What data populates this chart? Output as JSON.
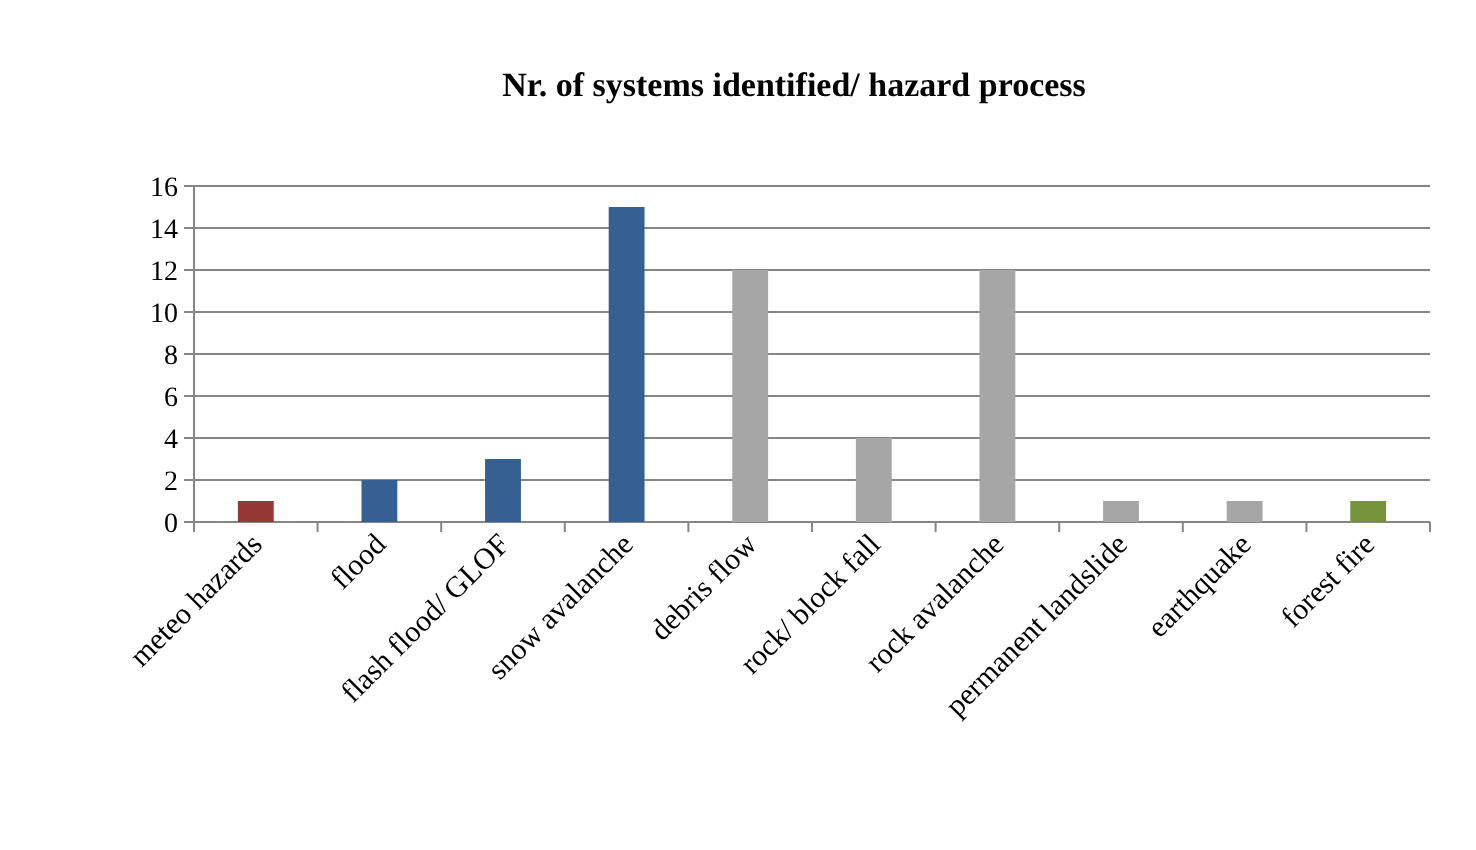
{
  "chart_data": {
    "type": "bar",
    "title": "Nr. of systems identified/ hazard process",
    "categories": [
      "meteo hazards",
      "flood",
      "flash flood/ GLOF",
      "snow avalanche",
      "debris flow",
      "rock/ block fall",
      "rock avalanche",
      "permanent landslide",
      "earthquake",
      "forest fire"
    ],
    "values": [
      1,
      2,
      3,
      15,
      12,
      4,
      12,
      1,
      1,
      1
    ],
    "colors": [
      "#953735",
      "#376092",
      "#376092",
      "#376092",
      "#a6a6a6",
      "#a6a6a6",
      "#a6a6a6",
      "#a6a6a6",
      "#a6a6a6",
      "#77933c"
    ],
    "ylim": [
      0,
      16
    ],
    "yticks": [
      0,
      2,
      4,
      6,
      8,
      10,
      12,
      14,
      16
    ],
    "grid": "y"
  }
}
